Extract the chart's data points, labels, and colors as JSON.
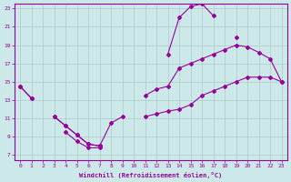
{
  "xlabel": "Windchill (Refroidissement éolien,°C)",
  "background_color": "#cce8e8",
  "grid_color": "#aacccc",
  "line_color": "#990099",
  "hours": [
    0,
    1,
    2,
    3,
    4,
    5,
    6,
    7,
    8,
    9,
    10,
    11,
    12,
    13,
    14,
    15,
    16,
    17,
    18,
    19,
    20,
    21,
    22,
    23
  ],
  "line_top": [
    14.5,
    13.2,
    null,
    null,
    9.5,
    8.5,
    7.8,
    7.8,
    null,
    null,
    null,
    null,
    null,
    18.0,
    22.0,
    23.2,
    23.5,
    22.2,
    null,
    19.8,
    null,
    null,
    null,
    null
  ],
  "line_mid": [
    14.5,
    13.2,
    null,
    11.2,
    10.2,
    9.2,
    8.2,
    8.0,
    10.5,
    11.2,
    null,
    13.5,
    14.2,
    14.5,
    16.5,
    17.0,
    17.5,
    18.0,
    18.5,
    19.0,
    18.8,
    18.2,
    17.5,
    15.0
  ],
  "line_bot": [
    null,
    null,
    null,
    11.2,
    10.2,
    9.2,
    8.2,
    8.0,
    null,
    null,
    null,
    11.2,
    11.5,
    11.8,
    12.0,
    12.5,
    13.5,
    14.0,
    14.5,
    15.0,
    15.5,
    15.5,
    15.5,
    15.0
  ],
  "xmin": 0,
  "xmax": 23,
  "ymin": 7,
  "ymax": 23,
  "xticks": [
    0,
    1,
    2,
    3,
    4,
    5,
    6,
    7,
    8,
    9,
    10,
    11,
    12,
    13,
    14,
    15,
    16,
    17,
    18,
    19,
    20,
    21,
    22,
    23
  ],
  "yticks": [
    7,
    9,
    11,
    13,
    15,
    17,
    19,
    21,
    23
  ]
}
